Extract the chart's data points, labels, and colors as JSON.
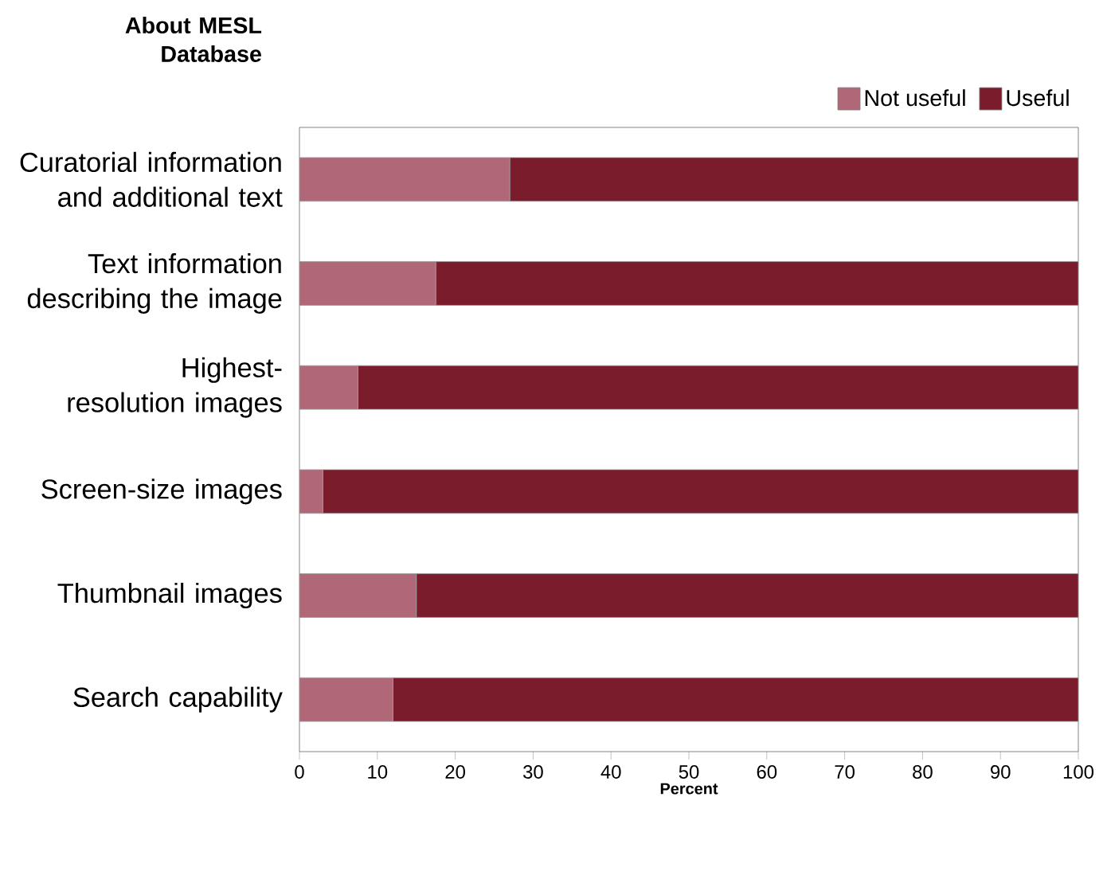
{
  "chart_data": {
    "type": "bar",
    "orientation": "horizontal",
    "stacked": true,
    "title": "About MESL Database",
    "xlabel": "Percent",
    "categories": [
      "Curatorial information and additional text",
      "Text information describing the image",
      "Highest-resolution images",
      "Screen-size images",
      "Thumbnail images",
      "Search capability"
    ],
    "series": [
      {
        "name": "Not useful",
        "color": "#b06878",
        "values": [
          27,
          17.5,
          7.5,
          3,
          15,
          12
        ]
      },
      {
        "name": "Useful",
        "color": "#7a1c2c",
        "values": [
          73,
          82.5,
          92.5,
          97,
          85,
          88
        ]
      }
    ],
    "xlim": [
      0,
      100
    ],
    "xticks": [
      0,
      10,
      20,
      30,
      40,
      50,
      60,
      70,
      80,
      90,
      100
    ],
    "legend": "top right"
  }
}
